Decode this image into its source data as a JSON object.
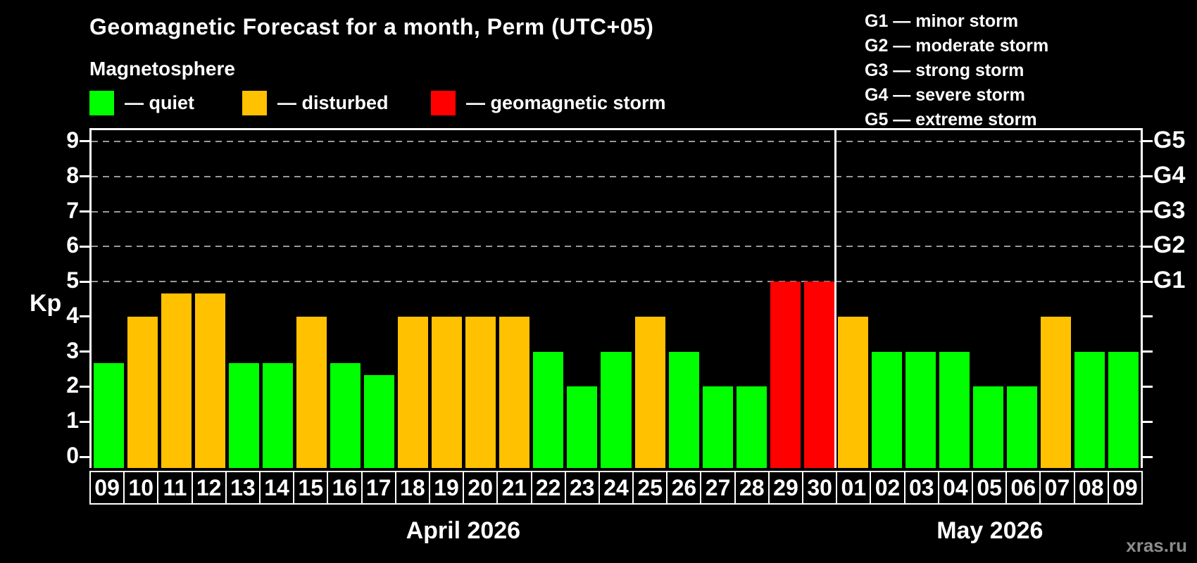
{
  "header": {
    "title": "Geomagnetic Forecast for a month, Perm (UTC+05)",
    "subtitle": "Magnetosphere",
    "watermark": "xras.ru"
  },
  "legend": {
    "items": [
      {
        "name": "quiet",
        "label": "— quiet",
        "color": "#00ff00"
      },
      {
        "name": "disturbed",
        "label": "— disturbed",
        "color": "#ffc100"
      },
      {
        "name": "storm",
        "label": "— geomagnetic storm",
        "color": "#ff0000"
      }
    ]
  },
  "g_legend": [
    "G1 — minor storm",
    "G2 — moderate storm",
    "G3 — strong storm",
    "G4 — severe storm",
    "G5 — extreme storm"
  ],
  "chart_data": {
    "type": "bar",
    "title": "Geomagnetic Forecast for a month, Perm (UTC+05)",
    "ylabel": "Kp",
    "ylim": [
      0,
      9
    ],
    "yticks": [
      0,
      1,
      2,
      3,
      4,
      5,
      6,
      7,
      8,
      9
    ],
    "gridline_levels": [
      5,
      6,
      7,
      8,
      9
    ],
    "grid": "dashed-horizontal",
    "g_labels": [
      {
        "level": 5,
        "text": "G1"
      },
      {
        "level": 6,
        "text": "G2"
      },
      {
        "level": 7,
        "text": "G3"
      },
      {
        "level": 8,
        "text": "G4"
      },
      {
        "level": 9,
        "text": "G5"
      }
    ],
    "months": [
      {
        "label": "April 2026",
        "short": "apr",
        "days": 22
      },
      {
        "label": "May 2026",
        "short": "may",
        "days": 9
      }
    ],
    "categories": [
      "09",
      "10",
      "11",
      "12",
      "13",
      "14",
      "15",
      "16",
      "17",
      "18",
      "19",
      "20",
      "21",
      "22",
      "23",
      "24",
      "25",
      "26",
      "27",
      "28",
      "29",
      "30",
      "01",
      "02",
      "03",
      "04",
      "05",
      "06",
      "07",
      "08",
      "09"
    ],
    "values": [
      2.67,
      4,
      4.67,
      4.67,
      2.67,
      2.67,
      4,
      2.67,
      2.33,
      4,
      4,
      4,
      4,
      3,
      2,
      3,
      4,
      3,
      2,
      2,
      5,
      5,
      4,
      3,
      3,
      3,
      2,
      2,
      4,
      3,
      3
    ],
    "statuses": [
      "quiet",
      "disturbed",
      "disturbed",
      "disturbed",
      "quiet",
      "quiet",
      "disturbed",
      "quiet",
      "quiet",
      "disturbed",
      "disturbed",
      "disturbed",
      "disturbed",
      "quiet",
      "quiet",
      "quiet",
      "disturbed",
      "quiet",
      "quiet",
      "quiet",
      "storm",
      "storm",
      "disturbed",
      "quiet",
      "quiet",
      "quiet",
      "quiet",
      "quiet",
      "disturbed",
      "quiet",
      "quiet"
    ],
    "colors": {
      "quiet": "#00ff00",
      "disturbed": "#ffc100",
      "storm": "#ff0000"
    },
    "axis_color": "#ffffff",
    "gridline_color": "#999999",
    "background_color": "#000000"
  }
}
